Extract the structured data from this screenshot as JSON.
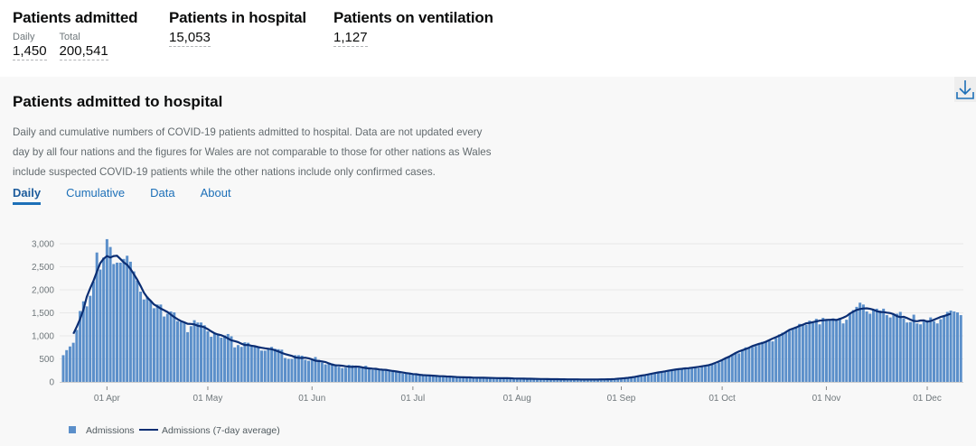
{
  "headline": {
    "admitted": {
      "title": "Patients admitted",
      "daily_label": "Daily",
      "daily_value": "1,450",
      "total_label": "Total",
      "total_value": "200,541"
    },
    "in_hospital": {
      "title": "Patients in hospital",
      "value": "15,053"
    },
    "ventilation": {
      "title": "Patients on ventilation",
      "value": "1,127"
    }
  },
  "card": {
    "title": "Patients admitted to hospital",
    "description": "Daily and cumulative numbers of COVID-19 patients admitted to hospital. Data are not updated every day by all four nations and the figures for Wales are not comparable to those for other nations as Wales include suspected COVID-19 patients while the other nations include only confirmed cases.",
    "download_icon": "download-icon",
    "tabs": [
      {
        "label": "Daily",
        "active": true
      },
      {
        "label": "Cumulative"
      },
      {
        "label": "Data"
      },
      {
        "label": "About"
      }
    ]
  },
  "chart_data": {
    "type": "bar",
    "xlabel": "",
    "ylabel": "",
    "ylim": [
      0,
      3000
    ],
    "y_ticks": [
      "0",
      "500",
      "1,000",
      "1,500",
      "2,000",
      "2,500",
      "3,000"
    ],
    "y_tick_values": [
      0,
      500,
      1000,
      1500,
      2000,
      2500,
      3000
    ],
    "x_ticks": [
      {
        "label": "01 Apr",
        "date": "2020-04-01"
      },
      {
        "label": "01 May",
        "date": "2020-05-01"
      },
      {
        "label": "01 Jun",
        "date": "2020-06-01"
      },
      {
        "label": "01 Jul",
        "date": "2020-07-01"
      },
      {
        "label": "01 Aug",
        "date": "2020-08-01"
      },
      {
        "label": "01 Sep",
        "date": "2020-09-01"
      },
      {
        "label": "01 Oct",
        "date": "2020-10-01"
      },
      {
        "label": "01 Nov",
        "date": "2020-11-01"
      },
      {
        "label": "01 Dec",
        "date": "2020-12-01"
      }
    ],
    "grid": true,
    "legend_position": "bottom-left",
    "colors": {
      "bars": "#5b8fca",
      "line": "#0b2e73"
    },
    "series": [
      {
        "name": "Admissions",
        "kind": "bar",
        "values_by_month": [
          {
            "month": "2020-03",
            "from_day": 19,
            "values": [
              580,
              690,
              770,
              850,
              1130,
              1540,
              1750,
              1640,
              1870,
              2180,
              2810,
              2440,
              2700
            ]
          },
          {
            "month": "2020-04",
            "from_day": 1,
            "values": [
              3100,
              2930,
              2560,
              2590,
              2590,
              2670,
              2740,
              2610,
              2400,
              2200,
              1960,
              1790,
              1850,
              1760,
              1600,
              1680,
              1680,
              1420,
              1480,
              1530,
              1510,
              1320,
              1300,
              1300,
              1080,
              1210,
              1340,
              1290,
              1290,
              1230
            ]
          },
          {
            "month": "2020-05",
            "from_day": 1,
            "values": [
              1100,
              980,
              1070,
              1050,
              960,
              1010,
              1040,
              990,
              750,
              800,
              760,
              860,
              850,
              800,
              780,
              770,
              680,
              680,
              720,
              760,
              720,
              710,
              700,
              520,
              500,
              500,
              580,
              580,
              570,
              480,
              460
            ]
          },
          {
            "month": "2020-06",
            "from_day": 1,
            "values": [
              470,
              540,
              480,
              420,
              380,
              420,
              400,
              380,
              330,
              300,
              310,
              370,
              360,
              330,
              310,
              300,
              350,
              280,
              260,
              290,
              270,
              260,
              280,
              250,
              240,
              230,
              220,
              180,
              190,
              200
            ]
          },
          {
            "month": "2020-07",
            "from_day": 1,
            "values": [
              170,
              160,
              150,
              150,
              140,
              120,
              140,
              140,
              130,
              130,
              110,
              100,
              110,
              110,
              120,
              100,
              90,
              80,
              90,
              100,
              100,
              90,
              90,
              80,
              75,
              80,
              90,
              85,
              80,
              75,
              80
            ]
          },
          {
            "month": "2020-08",
            "from_day": 1,
            "values": [
              70,
              70,
              65,
              70,
              72,
              70,
              68,
              60,
              55,
              60,
              60,
              65,
              60,
              55,
              55,
              55,
              50,
              55,
              55,
              60,
              55,
              50,
              48,
              50,
              55,
              55,
              55,
              60,
              60,
              55,
              60
            ]
          },
          {
            "month": "2020-09",
            "from_day": 1,
            "values": [
              70,
              80,
              90,
              100,
              110,
              110,
              130,
              150,
              170,
              190,
              190,
              200,
              220,
              230,
              240,
              260,
              270,
              280,
              280,
              300,
              300,
              300,
              330,
              300,
              340,
              350,
              370,
              380,
              390,
              420
            ]
          },
          {
            "month": "2020-10",
            "from_day": 1,
            "values": [
              460,
              520,
              560,
              600,
              640,
              620,
              700,
              750,
              750,
              760,
              780,
              840,
              870,
              870,
              920,
              880,
              950,
              1030,
              1070,
              1080,
              1110,
              1150,
              1200,
              1260,
              1230,
              1240,
              1330,
              1280,
              1370,
              1250,
              1390
            ]
          },
          {
            "month": "2020-11",
            "from_day": 1,
            "values": [
              1330,
              1360,
              1380,
              1340,
              1390,
              1270,
              1350,
              1470,
              1560,
              1630,
              1720,
              1680,
              1530,
              1480,
              1560,
              1590,
              1550,
              1590,
              1450,
              1400,
              1470,
              1480,
              1520,
              1380,
              1290,
              1300,
              1460,
              1270,
              1250,
              1310
            ]
          },
          {
            "month": "2020-12",
            "from_day": 1,
            "values": [
              1340,
              1400,
              1320,
              1270,
              1360,
              1450,
              1520,
              1550,
              1530,
              1510,
              1450
            ]
          }
        ]
      },
      {
        "name": "Admissions (7-day average)",
        "kind": "line",
        "derived_from": "Admissions"
      }
    ]
  }
}
